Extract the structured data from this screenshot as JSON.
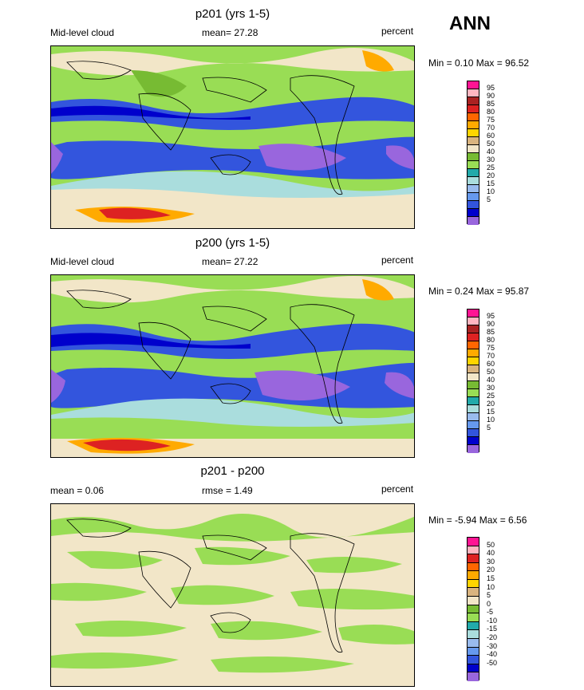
{
  "season": "ANN",
  "panels": [
    {
      "title": "p201 (yrs 1-5)",
      "left": "Mid-level cloud",
      "center": "mean=  27.28",
      "right": "percent",
      "minmax": "Min =   0.10 Max =  96.52",
      "ticks": [
        "95",
        "90",
        "85",
        "80",
        "75",
        "70",
        "60",
        "50",
        "40",
        "30",
        "25",
        "20",
        "15",
        "10",
        "5"
      ]
    },
    {
      "title": "p200 (yrs 1-5)",
      "left": "Mid-level cloud",
      "center": "mean=  27.22",
      "right": "percent",
      "minmax": "Min =   0.24 Max =  95.87",
      "ticks": [
        "95",
        "90",
        "85",
        "80",
        "75",
        "70",
        "60",
        "50",
        "40",
        "30",
        "25",
        "20",
        "15",
        "10",
        "5"
      ]
    },
    {
      "title": "p201 - p200",
      "left": "mean =   0.06",
      "center": "rmse =   1.49",
      "right": "percent",
      "minmax": "Min =  -5.94 Max =   6.56",
      "ticks": [
        "50",
        "40",
        "30",
        "20",
        "15",
        "10",
        "5",
        "0",
        "-5",
        "-10",
        "-15",
        "-20",
        "-30",
        "-40",
        "-50"
      ]
    }
  ],
  "colors": {
    "abs_scale": [
      "#9966dd",
      "#0000cc",
      "#3355dd",
      "#6699ee",
      "#99bbee",
      "#aadddd",
      "#22aaaa",
      "#99dd55",
      "#77bb33",
      "#f2e6c8",
      "#d9b47f",
      "#ffd500",
      "#ffaa00",
      "#ff6600",
      "#dd2222",
      "#aa2222",
      "#ffb6c1",
      "#ff1493"
    ],
    "diff_scale": [
      "#9966dd",
      "#0000cc",
      "#3355dd",
      "#6699ee",
      "#99bbee",
      "#aadddd",
      "#22aaaa",
      "#99dd55",
      "#77bb33",
      "#f2e6c8",
      "#d9b47f",
      "#ffd500",
      "#ffaa00",
      "#ff6600",
      "#dd2222",
      "#ffb6c1",
      "#ff1493"
    ]
  }
}
